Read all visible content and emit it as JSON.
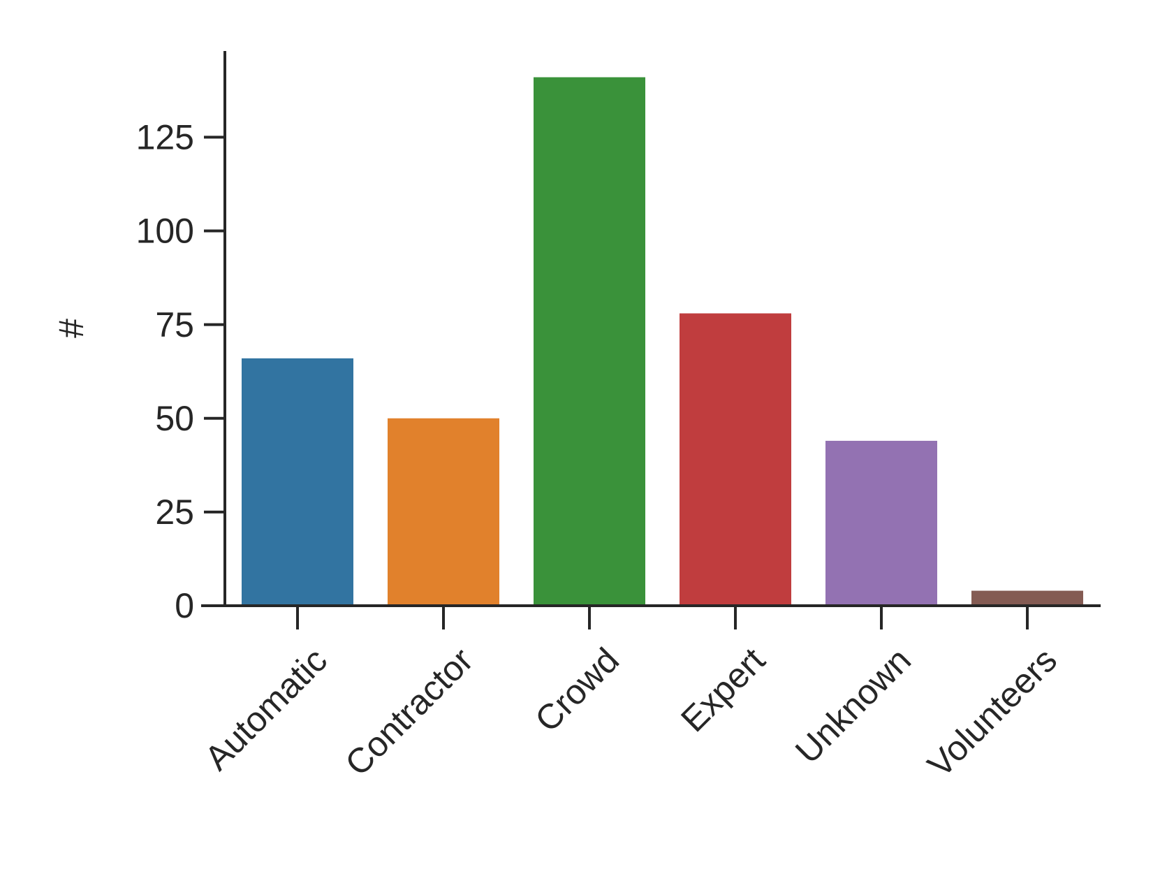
{
  "chart_data": {
    "type": "bar",
    "y_label": "#",
    "categories": [
      "Automatic",
      "Contractor",
      "Crowd",
      "Expert",
      "Unknown",
      "Volunteers"
    ],
    "values": [
      66,
      50,
      141,
      78,
      44,
      4
    ],
    "colors": [
      "#3274a1",
      "#e1812c",
      "#3a923a",
      "#c03d3e",
      "#9372b2",
      "#845b53"
    ],
    "ylim": [
      0,
      148
    ],
    "yticks": [
      0,
      25,
      50,
      75,
      100,
      125
    ]
  }
}
